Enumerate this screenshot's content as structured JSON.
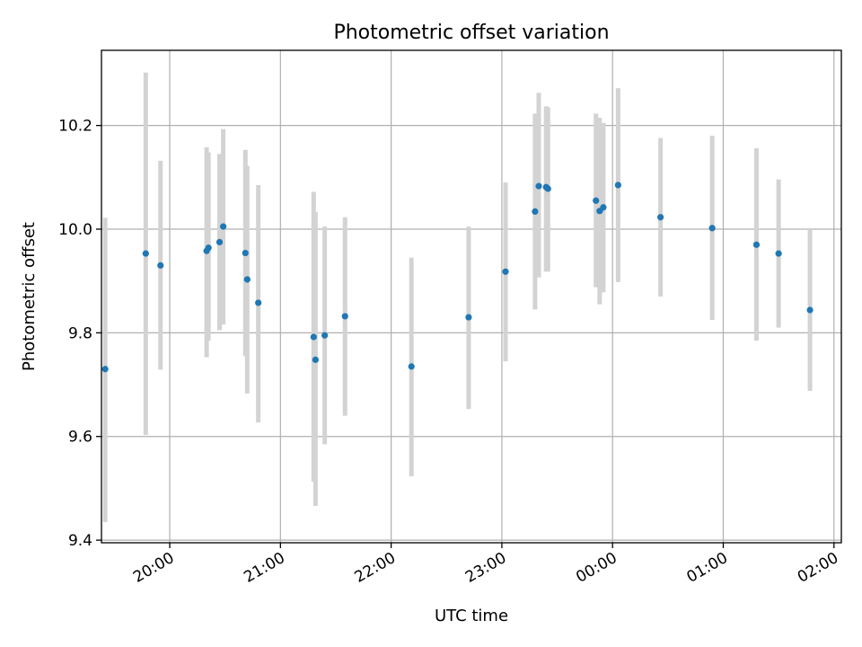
{
  "chart_data": {
    "type": "scatter",
    "title": "Photometric offset variation",
    "xlabel": "UTC time",
    "ylabel": "Photometric offset",
    "x_is_time": true,
    "xlim": [
      "19:23",
      "02:04"
    ],
    "ylim": [
      9.395,
      10.345
    ],
    "xticks": [
      "20:00",
      "21:00",
      "22:00",
      "23:00",
      "00:00",
      "01:00",
      "02:00"
    ],
    "yticks": [
      9.4,
      9.6,
      9.8,
      10.0,
      10.2
    ],
    "grid": true,
    "colors": {
      "point": "#1f77b4",
      "errorbar": "#d3d3d3"
    },
    "points": [
      {
        "x": "19:25",
        "y": 9.73,
        "y_low": 9.435,
        "y_high": 10.022
      },
      {
        "x": "19:47",
        "y": 9.953,
        "y_low": 9.603,
        "y_high": 10.302
      },
      {
        "x": "19:55",
        "y": 9.93,
        "y_low": 9.729,
        "y_high": 10.132
      },
      {
        "x": "20:20",
        "y": 9.958,
        "y_low": 9.753,
        "y_high": 10.158
      },
      {
        "x": "20:21",
        "y": 9.964,
        "y_low": 9.785,
        "y_high": 10.148
      },
      {
        "x": "20:27",
        "y": 9.975,
        "y_low": 9.805,
        "y_high": 10.145
      },
      {
        "x": "20:29",
        "y": 10.005,
        "y_low": 9.816,
        "y_high": 10.193
      },
      {
        "x": "20:41",
        "y": 9.954,
        "y_low": 9.755,
        "y_high": 10.153
      },
      {
        "x": "20:42",
        "y": 9.903,
        "y_low": 9.683,
        "y_high": 10.122
      },
      {
        "x": "20:48",
        "y": 9.858,
        "y_low": 9.627,
        "y_high": 10.085
      },
      {
        "x": "21:18",
        "y": 9.792,
        "y_low": 9.513,
        "y_high": 10.072
      },
      {
        "x": "21:19",
        "y": 9.748,
        "y_low": 9.466,
        "y_high": 10.033
      },
      {
        "x": "21:24",
        "y": 9.795,
        "y_low": 9.585,
        "y_high": 10.005
      },
      {
        "x": "21:35",
        "y": 9.832,
        "y_low": 9.64,
        "y_high": 10.023
      },
      {
        "x": "22:11",
        "y": 9.735,
        "y_low": 9.523,
        "y_high": 9.945
      },
      {
        "x": "22:42",
        "y": 9.83,
        "y_low": 9.653,
        "y_high": 10.005
      },
      {
        "x": "23:02",
        "y": 9.918,
        "y_low": 9.745,
        "y_high": 10.09
      },
      {
        "x": "23:18",
        "y": 10.034,
        "y_low": 9.845,
        "y_high": 10.223
      },
      {
        "x": "23:20",
        "y": 10.083,
        "y_low": 9.907,
        "y_high": 10.263
      },
      {
        "x": "23:24",
        "y": 10.081,
        "y_low": 9.918,
        "y_high": 10.237
      },
      {
        "x": "23:25",
        "y": 10.078,
        "y_low": 9.918,
        "y_high": 10.235
      },
      {
        "x": "23:51",
        "y": 10.055,
        "y_low": 9.888,
        "y_high": 10.223
      },
      {
        "x": "23:53",
        "y": 10.035,
        "y_low": 9.855,
        "y_high": 10.215
      },
      {
        "x": "23:55",
        "y": 10.042,
        "y_low": 9.878,
        "y_high": 10.205
      },
      {
        "x": "00:03",
        "y": 10.085,
        "y_low": 9.898,
        "y_high": 10.272
      },
      {
        "x": "00:26",
        "y": 10.023,
        "y_low": 9.87,
        "y_high": 10.176
      },
      {
        "x": "00:54",
        "y": 10.002,
        "y_low": 9.825,
        "y_high": 10.18
      },
      {
        "x": "01:18",
        "y": 9.97,
        "y_low": 9.785,
        "y_high": 10.156
      },
      {
        "x": "01:30",
        "y": 9.953,
        "y_low": 9.81,
        "y_high": 10.096
      },
      {
        "x": "01:47",
        "y": 9.844,
        "y_low": 9.688,
        "y_high": 10.0
      }
    ]
  }
}
